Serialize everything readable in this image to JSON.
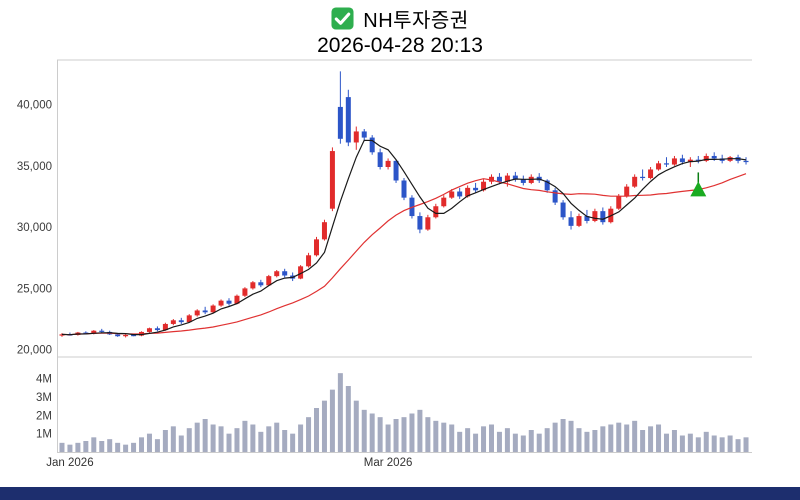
{
  "header": {
    "title": "NH투자증권",
    "timestamp": "2026-04-28 20:13",
    "icon_color": "#2eae4e"
  },
  "footer_bar_color": "#1d2e6e",
  "chart_data": {
    "type": "candlestick",
    "title": "NH투자증권",
    "timestamp": "2026-04-28 20:13",
    "legend_position": "none",
    "grid": false,
    "y_axis": {
      "ticks": [
        {
          "value": 40000,
          "label": "40,000"
        },
        {
          "value": 35000,
          "label": "35,000"
        },
        {
          "value": 30000,
          "label": "30,000"
        },
        {
          "value": 25000,
          "label": "25,000"
        },
        {
          "value": 20000,
          "label": "20,000"
        }
      ],
      "range": [
        19650,
        43300
      ]
    },
    "volume_axis": {
      "max": 4.8,
      "unit": "M",
      "ticks": [
        {
          "value": 4,
          "label": "4M"
        },
        {
          "value": 3,
          "label": "3M"
        },
        {
          "value": 2,
          "label": "2M"
        },
        {
          "value": 1,
          "label": "1M"
        }
      ]
    },
    "x_axis": {
      "labels": [
        {
          "index": 1,
          "text": "Jan 2026"
        },
        {
          "index": 41,
          "text": "Mar 2026"
        }
      ]
    },
    "colors": {
      "up": "#e12b2b",
      "down": "#2c55c8",
      "volume": "#a5abc0",
      "axis": "#cccccc",
      "label": "#3c3c3c"
    },
    "overlays": [
      {
        "name": "ma-long",
        "period": 20,
        "color": "#e03232",
        "width": 1.2
      },
      {
        "name": "ma-short",
        "period": 5,
        "color": "#1a1a1a",
        "width": 1.2
      }
    ],
    "marker": {
      "index": 80,
      "value": 32500,
      "shape": "triangle-up",
      "color": "#1aab21"
    },
    "candles_format": [
      "open",
      "high",
      "low",
      "close",
      "volume_millions"
    ],
    "candles": [
      [
        21150,
        21350,
        21050,
        21250,
        0.5
      ],
      [
        21250,
        21400,
        21150,
        21200,
        0.4
      ],
      [
        21200,
        21450,
        21150,
        21400,
        0.5
      ],
      [
        21400,
        21500,
        21250,
        21300,
        0.6
      ],
      [
        21300,
        21600,
        21250,
        21550,
        0.8
      ],
      [
        21550,
        21700,
        21400,
        21450,
        0.6
      ],
      [
        21450,
        21550,
        21200,
        21250,
        0.7
      ],
      [
        21250,
        21350,
        21050,
        21100,
        0.5
      ],
      [
        21100,
        21250,
        21000,
        21200,
        0.4
      ],
      [
        21200,
        21300,
        21100,
        21150,
        0.5
      ],
      [
        21150,
        21500,
        21100,
        21450,
        0.8
      ],
      [
        21450,
        21800,
        21400,
        21750,
        1.0
      ],
      [
        21750,
        21900,
        21500,
        21600,
        0.7
      ],
      [
        21600,
        22200,
        21550,
        22100,
        1.2
      ],
      [
        22100,
        22500,
        22000,
        22400,
        1.4
      ],
      [
        22400,
        22600,
        22100,
        22250,
        0.9
      ],
      [
        22250,
        22900,
        22200,
        22800,
        1.3
      ],
      [
        22800,
        23300,
        22700,
        23200,
        1.6
      ],
      [
        23200,
        23500,
        22900,
        23050,
        1.8
      ],
      [
        23050,
        23700,
        23000,
        23600,
        1.5
      ],
      [
        23600,
        24100,
        23500,
        24000,
        1.4
      ],
      [
        24000,
        24200,
        23600,
        23750,
        1.0
      ],
      [
        23750,
        24500,
        23700,
        24400,
        1.3
      ],
      [
        24400,
        25100,
        24300,
        25000,
        1.7
      ],
      [
        25000,
        25600,
        24900,
        25500,
        1.5
      ],
      [
        25500,
        25700,
        25100,
        25250,
        1.1
      ],
      [
        25250,
        26100,
        25200,
        26000,
        1.4
      ],
      [
        26000,
        26500,
        25900,
        26400,
        1.6
      ],
      [
        26400,
        26600,
        25900,
        26050,
        1.2
      ],
      [
        26050,
        26300,
        25600,
        25800,
        1.0
      ],
      [
        25800,
        26900,
        25750,
        26800,
        1.5
      ],
      [
        26800,
        27900,
        26700,
        27700,
        1.9
      ],
      [
        27700,
        29200,
        27600,
        29000,
        2.4
      ],
      [
        29000,
        30600,
        28900,
        30400,
        2.8
      ],
      [
        31500,
        36500,
        31300,
        36200,
        3.4
      ],
      [
        39800,
        42700,
        36800,
        37200,
        4.3
      ],
      [
        40600,
        41200,
        36600,
        36900,
        3.6
      ],
      [
        36900,
        38200,
        36300,
        37800,
        2.8
      ],
      [
        37800,
        38000,
        37000,
        37300,
        2.3
      ],
      [
        37300,
        37500,
        35900,
        36100,
        2.1
      ],
      [
        36100,
        36400,
        34700,
        34900,
        1.9
      ],
      [
        34900,
        35600,
        34700,
        35400,
        1.5
      ],
      [
        35400,
        35500,
        33600,
        33800,
        1.8
      ],
      [
        33800,
        34000,
        32200,
        32400,
        1.9
      ],
      [
        32400,
        32600,
        30700,
        30900,
        2.1
      ],
      [
        30900,
        31200,
        29500,
        29800,
        2.3
      ],
      [
        29800,
        31000,
        29700,
        30800,
        1.9
      ],
      [
        30800,
        31900,
        30700,
        31700,
        1.7
      ],
      [
        31700,
        32600,
        31600,
        32400,
        1.6
      ],
      [
        32400,
        33100,
        32300,
        32900,
        1.5
      ],
      [
        32900,
        33200,
        32300,
        32500,
        1.1
      ],
      [
        32500,
        33400,
        32400,
        33200,
        1.3
      ],
      [
        33200,
        33600,
        32800,
        33000,
        1.0
      ],
      [
        33000,
        33900,
        32900,
        33700,
        1.4
      ],
      [
        33700,
        34300,
        33500,
        34100,
        1.5
      ],
      [
        34100,
        34400,
        33500,
        33700,
        1.1
      ],
      [
        33700,
        34400,
        33300,
        34200,
        1.3
      ],
      [
        34200,
        34500,
        33700,
        33900,
        1.0
      ],
      [
        33900,
        34200,
        33400,
        33600,
        0.9
      ],
      [
        33600,
        34300,
        33500,
        34100,
        1.2
      ],
      [
        34100,
        34400,
        33600,
        33800,
        1.0
      ],
      [
        33800,
        33900,
        32800,
        33000,
        1.3
      ],
      [
        33000,
        33200,
        31800,
        32000,
        1.6
      ],
      [
        32000,
        32200,
        30600,
        30800,
        1.8
      ],
      [
        30800,
        31300,
        29800,
        30100,
        1.7
      ],
      [
        30100,
        31100,
        30000,
        30900,
        1.3
      ],
      [
        30900,
        31400,
        30300,
        30500,
        1.1
      ],
      [
        30500,
        31500,
        30400,
        31300,
        1.2
      ],
      [
        31300,
        31600,
        30200,
        30400,
        1.4
      ],
      [
        30400,
        31700,
        30300,
        31500,
        1.5
      ],
      [
        31500,
        32700,
        31400,
        32500,
        1.6
      ],
      [
        32500,
        33500,
        32400,
        33300,
        1.5
      ],
      [
        33300,
        34300,
        33200,
        34100,
        1.7
      ],
      [
        34100,
        34700,
        33800,
        34000,
        1.2
      ],
      [
        34000,
        34900,
        33900,
        34700,
        1.4
      ],
      [
        34700,
        35400,
        34600,
        35200,
        1.5
      ],
      [
        35200,
        35700,
        34900,
        35100,
        1.0
      ],
      [
        35100,
        35800,
        35000,
        35600,
        1.2
      ],
      [
        35600,
        35900,
        35100,
        35300,
        0.9
      ],
      [
        35300,
        35700,
        34900,
        35500,
        1.0
      ],
      [
        35500,
        35800,
        35200,
        35400,
        0.8
      ],
      [
        35400,
        36000,
        35300,
        35800,
        1.1
      ],
      [
        35800,
        36100,
        35400,
        35600,
        0.9
      ],
      [
        35600,
        35900,
        35200,
        35400,
        0.8
      ],
      [
        35400,
        35800,
        35300,
        35700,
        0.9
      ],
      [
        35700,
        35900,
        35200,
        35400,
        0.7
      ],
      [
        35400,
        35700,
        35100,
        35300,
        0.8
      ]
    ]
  }
}
